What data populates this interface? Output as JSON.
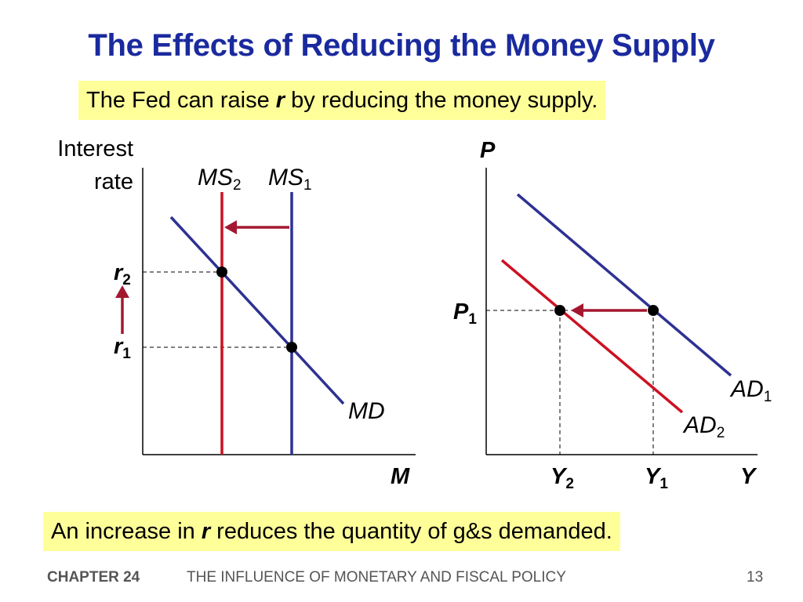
{
  "title": "The Effects of Reducing the Money Supply",
  "top_box": {
    "pre": "The Fed can raise ",
    "bold": "r",
    "post": " by reducing the money supply."
  },
  "bottom_box": {
    "pre": "An increase in ",
    "bold": "r",
    "post": " reduces the quantity of g&s demanded."
  },
  "money_market": {
    "y_label_line1": "Interest",
    "y_label_line2": "rate",
    "x_label": "M",
    "ms2": {
      "main": "MS",
      "sub": "2"
    },
    "ms1": {
      "main": "MS",
      "sub": "1"
    },
    "md": "MD",
    "r2": {
      "main": "r",
      "sub": "2"
    },
    "r1": {
      "main": "r",
      "sub": "1"
    }
  },
  "ad_market": {
    "y_label": "P",
    "x_label": "Y",
    "p1": {
      "main": "P",
      "sub": "1"
    },
    "y2": {
      "main": "Y",
      "sub": "2"
    },
    "y1": {
      "main": "Y",
      "sub": "1"
    },
    "ad1": {
      "main": "AD",
      "sub": "1"
    },
    "ad2": {
      "main": "AD",
      "sub": "2"
    }
  },
  "colors": {
    "blue": "#2e3192",
    "red": "#cc1122",
    "arrow": "#a31830",
    "title": "#1a2a9e",
    "box": "#ffff99"
  },
  "footer": {
    "chapter": "CHAPTER 24",
    "subject": "THE INFLUENCE OF MONETARY AND FISCAL POLICY",
    "page": "13"
  }
}
